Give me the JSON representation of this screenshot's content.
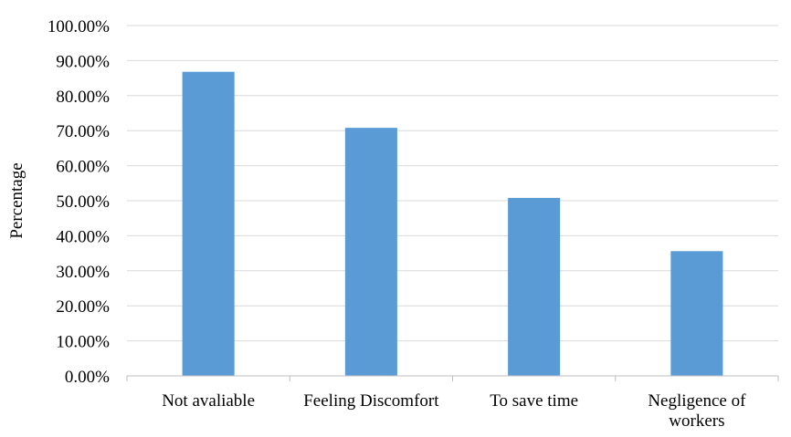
{
  "chart_data": {
    "type": "bar",
    "title": "",
    "xlabel": "",
    "ylabel": "Percentage",
    "categories": [
      [
        "Not avaliable"
      ],
      [
        "Feeling Discomfort"
      ],
      [
        "To save time"
      ],
      [
        "Negligence of",
        "workers"
      ]
    ],
    "values": [
      86.8,
      70.8,
      50.8,
      35.6
    ],
    "ylim": [
      0,
      100
    ],
    "ytick_step": 10,
    "ytick_labels": [
      "0.00%",
      "10.00%",
      "20.00%",
      "30.00%",
      "40.00%",
      "50.00%",
      "60.00%",
      "70.00%",
      "80.00%",
      "90.00%",
      "100.00%"
    ],
    "grid": true,
    "legend": "none",
    "bar_color": "#5b9bd5"
  }
}
